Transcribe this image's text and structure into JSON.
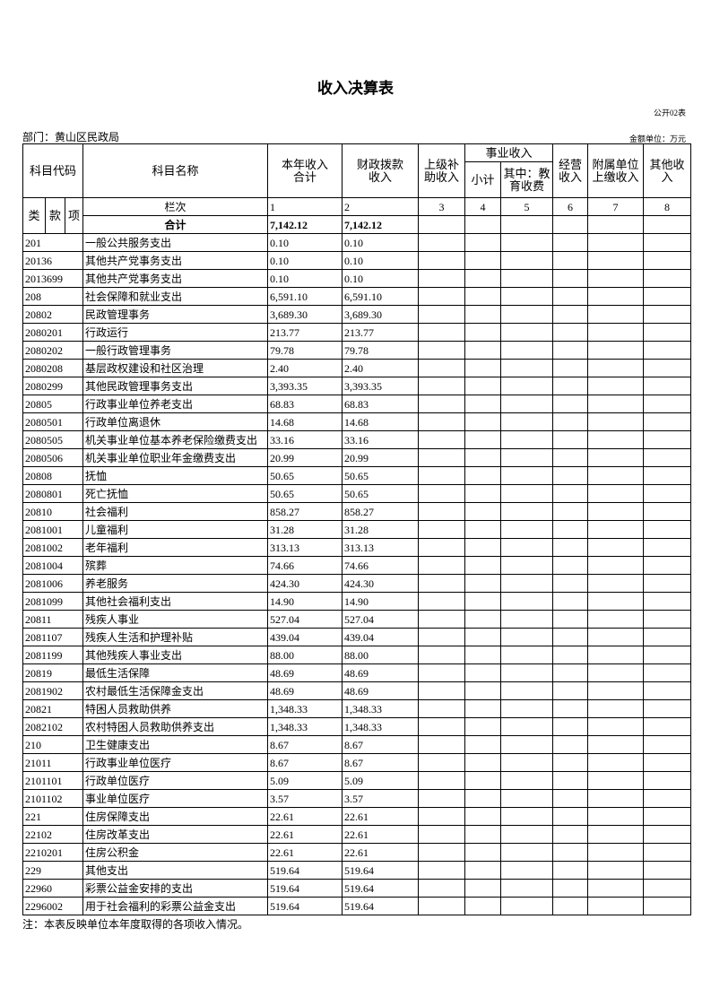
{
  "header": {
    "title": "收入决算表",
    "form_no": "公开02表",
    "department": "部门：黄山区民政局",
    "unit": "金额单位：万元"
  },
  "table": {
    "headers": {
      "code": "科目代码",
      "name": "科目名称",
      "total": "本年收入\n合计",
      "fiscal": "财政拨款\n收入",
      "superior": "上级补\n助收入",
      "business": "事业收入",
      "subtotal": "小计",
      "education": "其中：教\n育收费",
      "operating": "经营\n收入",
      "affiliated": "附属单位\n上缴收入",
      "other": "其他收\n入",
      "lei": "类",
      "kuan": "款",
      "xiang": "项"
    },
    "column_row": {
      "label": "栏次",
      "numbers": [
        "1",
        "2",
        "3",
        "4",
        "5",
        "6",
        "7",
        "8"
      ]
    },
    "total_row": {
      "label": "合计",
      "total": "7,142.12",
      "fiscal": "7,142.12"
    },
    "rows": [
      [
        "201",
        "一般公共服务支出",
        "0.10",
        "0.10"
      ],
      [
        "20136",
        "其他共产党事务支出",
        "0.10",
        "0.10"
      ],
      [
        "2013699",
        "其他共产党事务支出",
        "0.10",
        "0.10"
      ],
      [
        "208",
        "社会保障和就业支出",
        "6,591.10",
        "6,591.10"
      ],
      [
        "20802",
        "民政管理事务",
        "3,689.30",
        "3,689.30"
      ],
      [
        "2080201",
        "行政运行",
        "213.77",
        "213.77"
      ],
      [
        "2080202",
        "一般行政管理事务",
        "79.78",
        "79.78"
      ],
      [
        "2080208",
        "基层政权建设和社区治理",
        "2.40",
        "2.40"
      ],
      [
        "2080299",
        "其他民政管理事务支出",
        "3,393.35",
        "3,393.35"
      ],
      [
        "20805",
        "行政事业单位养老支出",
        "68.83",
        "68.83"
      ],
      [
        "2080501",
        "行政单位离退休",
        "14.68",
        "14.68"
      ],
      [
        "2080505",
        "机关事业单位基本养老保险缴费支出",
        "33.16",
        "33.16"
      ],
      [
        "2080506",
        "机关事业单位职业年金缴费支出",
        "20.99",
        "20.99"
      ],
      [
        "20808",
        "抚恤",
        "50.65",
        "50.65"
      ],
      [
        "2080801",
        "死亡抚恤",
        "50.65",
        "50.65"
      ],
      [
        "20810",
        "社会福利",
        "858.27",
        "858.27"
      ],
      [
        "2081001",
        "儿童福利",
        "31.28",
        "31.28"
      ],
      [
        "2081002",
        "老年福利",
        "313.13",
        "313.13"
      ],
      [
        "2081004",
        "殡葬",
        "74.66",
        "74.66"
      ],
      [
        "2081006",
        "养老服务",
        "424.30",
        "424.30"
      ],
      [
        "2081099",
        "其他社会福利支出",
        "14.90",
        "14.90"
      ],
      [
        "20811",
        "残疾人事业",
        "527.04",
        "527.04"
      ],
      [
        "2081107",
        "残疾人生活和护理补贴",
        "439.04",
        "439.04"
      ],
      [
        "2081199",
        "其他残疾人事业支出",
        "88.00",
        "88.00"
      ],
      [
        "20819",
        "最低生活保障",
        "48.69",
        "48.69"
      ],
      [
        "2081902",
        "农村最低生活保障金支出",
        "48.69",
        "48.69"
      ],
      [
        "20821",
        "特困人员救助供养",
        "1,348.33",
        "1,348.33"
      ],
      [
        "2082102",
        "农村特困人员救助供养支出",
        "1,348.33",
        "1,348.33"
      ],
      [
        "210",
        "卫生健康支出",
        "8.67",
        "8.67"
      ],
      [
        "21011",
        "行政事业单位医疗",
        "8.67",
        "8.67"
      ],
      [
        "2101101",
        "行政单位医疗",
        "5.09",
        "5.09"
      ],
      [
        "2101102",
        "事业单位医疗",
        "3.57",
        "3.57"
      ],
      [
        "221",
        "住房保障支出",
        "22.61",
        "22.61"
      ],
      [
        "22102",
        "住房改革支出",
        "22.61",
        "22.61"
      ],
      [
        "2210201",
        "住房公积金",
        "22.61",
        "22.61"
      ],
      [
        "229",
        "其他支出",
        "519.64",
        "519.64"
      ],
      [
        "22960",
        "彩票公益金安排的支出",
        "519.64",
        "519.64"
      ],
      [
        "2296002",
        "用于社会福利的彩票公益金支出",
        "519.64",
        "519.64"
      ]
    ]
  },
  "footer": {
    "note": "注：本表反映单位本年度取得的各项收入情况。"
  }
}
